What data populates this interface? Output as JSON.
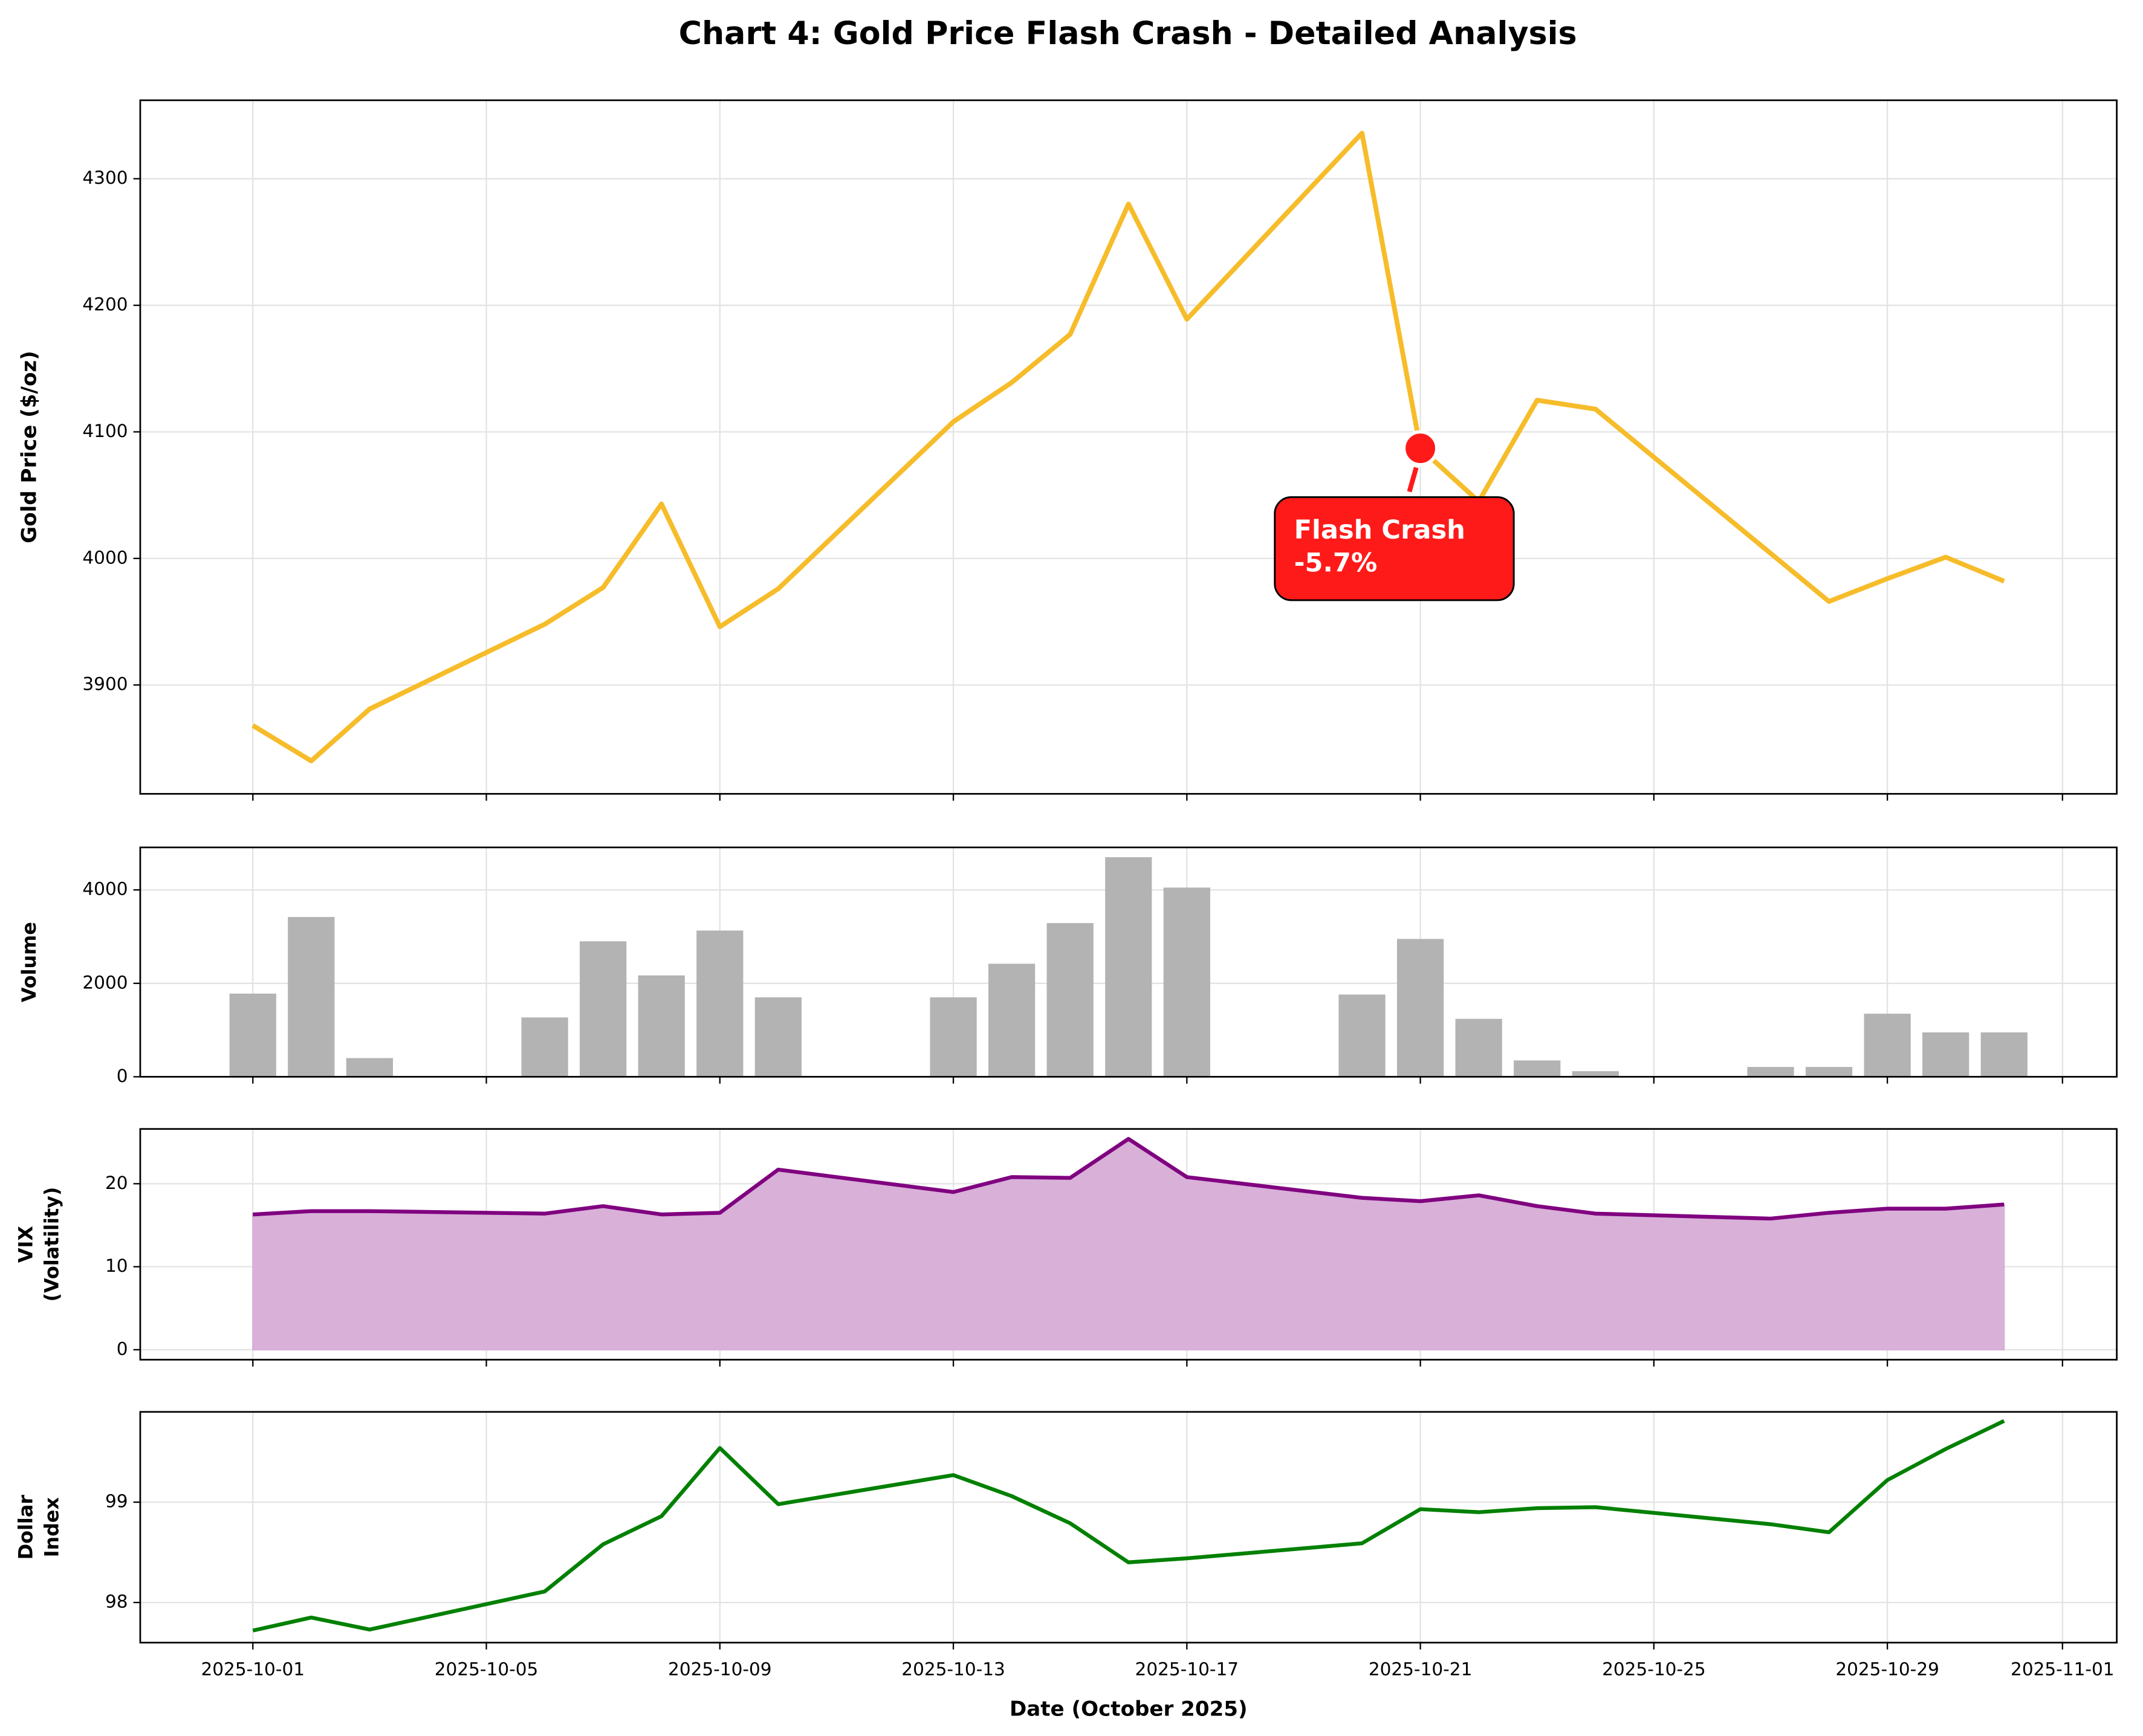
{
  "title": "Chart 4: Gold Price Flash Crash - Detailed Analysis",
  "chart_data": [
    {
      "type": "line",
      "ylabel": [
        "Gold Price ($/oz)"
      ],
      "color": "#f6bc2a",
      "grid": true,
      "x": [
        "2025-10-01",
        "2025-10-02",
        "2025-10-03",
        "2025-10-06",
        "2025-10-07",
        "2025-10-08",
        "2025-10-09",
        "2025-10-10",
        "2025-10-13",
        "2025-10-14",
        "2025-10-15",
        "2025-10-16",
        "2025-10-17",
        "2025-10-20",
        "2025-10-21",
        "2025-10-22",
        "2025-10-23",
        "2025-10-24",
        "2025-10-27",
        "2025-10-28",
        "2025-10-29",
        "2025-10-30",
        "2025-10-31"
      ],
      "values": [
        3868,
        3840,
        3881,
        3948,
        3977,
        4043,
        3946,
        3976,
        4108,
        4139,
        4177,
        4280,
        4189,
        4336,
        4087,
        4045,
        4125,
        4118,
        4004,
        3966,
        3984,
        4001,
        3982
      ],
      "ylim": [
        3814,
        4362
      ],
      "yticks": [
        3900,
        4000,
        4100,
        4200,
        4300
      ],
      "annotation": {
        "text": [
          "Flash Crash",
          "-5.7%"
        ],
        "x": "2025-10-21",
        "y": 4087,
        "color": "#ff1a1a"
      }
    },
    {
      "type": "bar",
      "ylabel": [
        "Volume"
      ],
      "color": "#b3b3b3",
      "grid": true,
      "x": [
        "2025-10-01",
        "2025-10-02",
        "2025-10-03",
        "2025-10-06",
        "2025-10-07",
        "2025-10-08",
        "2025-10-09",
        "2025-10-10",
        "2025-10-13",
        "2025-10-14",
        "2025-10-15",
        "2025-10-16",
        "2025-10-17",
        "2025-10-20",
        "2025-10-21",
        "2025-10-22",
        "2025-10-23",
        "2025-10-24",
        "2025-10-27",
        "2025-10-28",
        "2025-10-29",
        "2025-10-30",
        "2025-10-31"
      ],
      "values": [
        1780,
        3420,
        400,
        1270,
        2900,
        2170,
        3130,
        1700,
        1700,
        2420,
        3290,
        4700,
        4050,
        1760,
        2950,
        1240,
        350,
        120,
        210,
        210,
        1350,
        950,
        950
      ],
      "ylim": [
        0,
        4910
      ],
      "yticks": [
        0,
        2000,
        4000
      ]
    },
    {
      "type": "area",
      "ylabel": [
        "VIX",
        "(Volatility)"
      ],
      "color": "#800080",
      "fill": "#d8b0d8",
      "grid": true,
      "x": [
        "2025-10-01",
        "2025-10-02",
        "2025-10-03",
        "2025-10-06",
        "2025-10-07",
        "2025-10-08",
        "2025-10-09",
        "2025-10-10",
        "2025-10-13",
        "2025-10-14",
        "2025-10-15",
        "2025-10-16",
        "2025-10-17",
        "2025-10-20",
        "2025-10-21",
        "2025-10-22",
        "2025-10-23",
        "2025-10-24",
        "2025-10-27",
        "2025-10-28",
        "2025-10-29",
        "2025-10-30",
        "2025-10-31"
      ],
      "values": [
        16.3,
        16.7,
        16.7,
        16.4,
        17.3,
        16.3,
        16.5,
        21.7,
        19.0,
        20.8,
        20.7,
        25.4,
        20.8,
        18.3,
        17.9,
        18.6,
        17.3,
        16.4,
        15.8,
        16.5,
        17.0,
        17.0,
        17.5
      ],
      "ylim": [
        -1.2,
        26.6
      ],
      "yticks": [
        0,
        10,
        20
      ]
    },
    {
      "type": "line",
      "ylabel": [
        "Dollar",
        "Index"
      ],
      "xlabel": "Date (October 2025)",
      "color": "#008000",
      "grid": true,
      "x": [
        "2025-10-01",
        "2025-10-02",
        "2025-10-03",
        "2025-10-06",
        "2025-10-07",
        "2025-10-08",
        "2025-10-09",
        "2025-10-10",
        "2025-10-13",
        "2025-10-14",
        "2025-10-15",
        "2025-10-16",
        "2025-10-17",
        "2025-10-20",
        "2025-10-21",
        "2025-10-22",
        "2025-10-23",
        "2025-10-24",
        "2025-10-27",
        "2025-10-28",
        "2025-10-29",
        "2025-10-30",
        "2025-10-31"
      ],
      "values": [
        97.72,
        97.85,
        97.73,
        98.11,
        98.58,
        98.86,
        99.54,
        98.98,
        99.27,
        99.06,
        98.79,
        98.4,
        98.44,
        98.59,
        98.93,
        98.9,
        98.94,
        98.95,
        98.78,
        98.7,
        99.22,
        99.53,
        99.81
      ],
      "ylim": [
        97.6,
        99.9
      ],
      "yticks": [
        98,
        99
      ],
      "xlim": [
        "2025-09-29T01:42",
        "2025-11-01T22:19"
      ],
      "xticks": [
        "2025-10-01",
        "2025-10-05",
        "2025-10-09",
        "2025-10-13",
        "2025-10-17",
        "2025-10-21",
        "2025-10-25",
        "2025-10-29",
        "2025-11-01"
      ]
    }
  ]
}
